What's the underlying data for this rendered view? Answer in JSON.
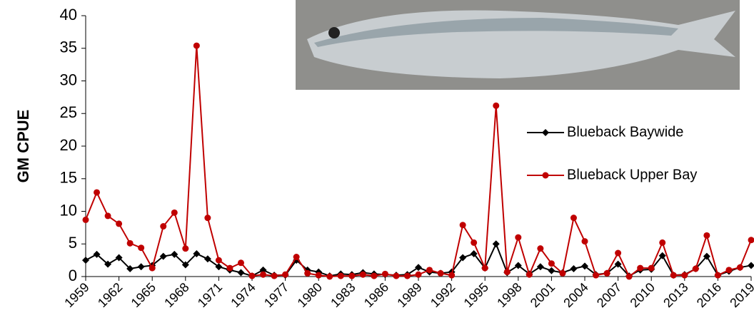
{
  "chart_data": {
    "type": "line",
    "ylabel": "GM CPUE",
    "x": [
      1959,
      1960,
      1961,
      1962,
      1963,
      1964,
      1965,
      1966,
      1967,
      1968,
      1969,
      1970,
      1971,
      1972,
      1973,
      1974,
      1975,
      1976,
      1977,
      1978,
      1979,
      1980,
      1981,
      1982,
      1983,
      1984,
      1985,
      1986,
      1987,
      1988,
      1989,
      1990,
      1991,
      1992,
      1993,
      1994,
      1995,
      1996,
      1997,
      1998,
      1999,
      2000,
      2001,
      2002,
      2003,
      2004,
      2005,
      2006,
      2007,
      2008,
      2009,
      2010,
      2011,
      2012,
      2013,
      2014,
      2015,
      2016,
      2017,
      2018,
      2019
    ],
    "xlim": [
      1959,
      2019
    ],
    "xticks": [
      1959,
      1962,
      1965,
      1968,
      1971,
      1974,
      1977,
      1980,
      1983,
      1986,
      1989,
      1992,
      1995,
      1998,
      2001,
      2004,
      2007,
      2010,
      2013,
      2016,
      2019
    ],
    "ylim": [
      0,
      40
    ],
    "yticks": [
      0,
      5,
      10,
      15,
      20,
      25,
      30,
      35,
      40
    ],
    "series": [
      {
        "name": "Blueback Baywide",
        "color": "#000000",
        "marker": "diamond",
        "values": [
          2.5,
          3.4,
          1.9,
          2.9,
          1.2,
          1.5,
          1.7,
          3.1,
          3.4,
          1.8,
          3.5,
          2.7,
          1.5,
          1.0,
          0.6,
          0.1,
          1.0,
          0.2,
          0.2,
          2.5,
          1.0,
          0.7,
          0.1,
          0.4,
          0.3,
          0.6,
          0.4,
          0.3,
          0.2,
          0.3,
          1.4,
          0.7,
          0.5,
          0.7,
          2.9,
          3.5,
          1.3,
          5.0,
          0.6,
          1.7,
          0.4,
          1.5,
          0.9,
          0.6,
          1.2,
          1.6,
          0.3,
          0.5,
          1.9,
          0.1,
          1.0,
          1.1,
          3.2,
          0.2,
          0.3,
          1.2,
          3.1,
          0.2,
          0.8,
          1.4,
          1.7
        ]
      },
      {
        "name": "Blueback Upper Bay",
        "color": "#c00000",
        "marker": "circle",
        "values": [
          8.7,
          12.9,
          9.3,
          8.1,
          5.1,
          4.4,
          1.3,
          7.7,
          9.8,
          4.3,
          35.4,
          9.0,
          2.5,
          1.3,
          2.1,
          0.1,
          0.3,
          0.1,
          0.3,
          3.0,
          0.5,
          0.2,
          0.0,
          0.1,
          0.1,
          0.3,
          0.1,
          0.4,
          0.1,
          0.1,
          0.3,
          1.0,
          0.5,
          0.2,
          7.9,
          5.2,
          1.3,
          26.2,
          0.7,
          6.0,
          0.3,
          4.3,
          2.0,
          0.5,
          9.0,
          5.4,
          0.2,
          0.5,
          3.6,
          0.0,
          1.3,
          1.3,
          5.2,
          0.2,
          0.2,
          1.2,
          6.3,
          0.2,
          1.0,
          1.4,
          5.6
        ]
      }
    ]
  }
}
